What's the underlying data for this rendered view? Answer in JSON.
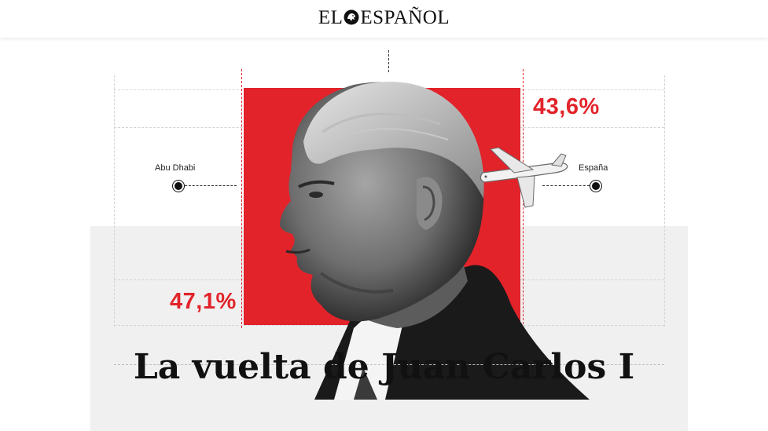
{
  "masthead": {
    "logo_left": "EL",
    "logo_right": "ESPAÑOL",
    "logo_icon": "lion-head-icon"
  },
  "graphic": {
    "left_label": "Abu Dhabi",
    "right_label": "España",
    "left_percent": "47,1%",
    "right_percent": "43,6%",
    "accent_color": "#e2232a",
    "icons": [
      "portrait-illustration",
      "airplane-icon"
    ]
  },
  "headline": "La vuelta de Juan Carlos I"
}
